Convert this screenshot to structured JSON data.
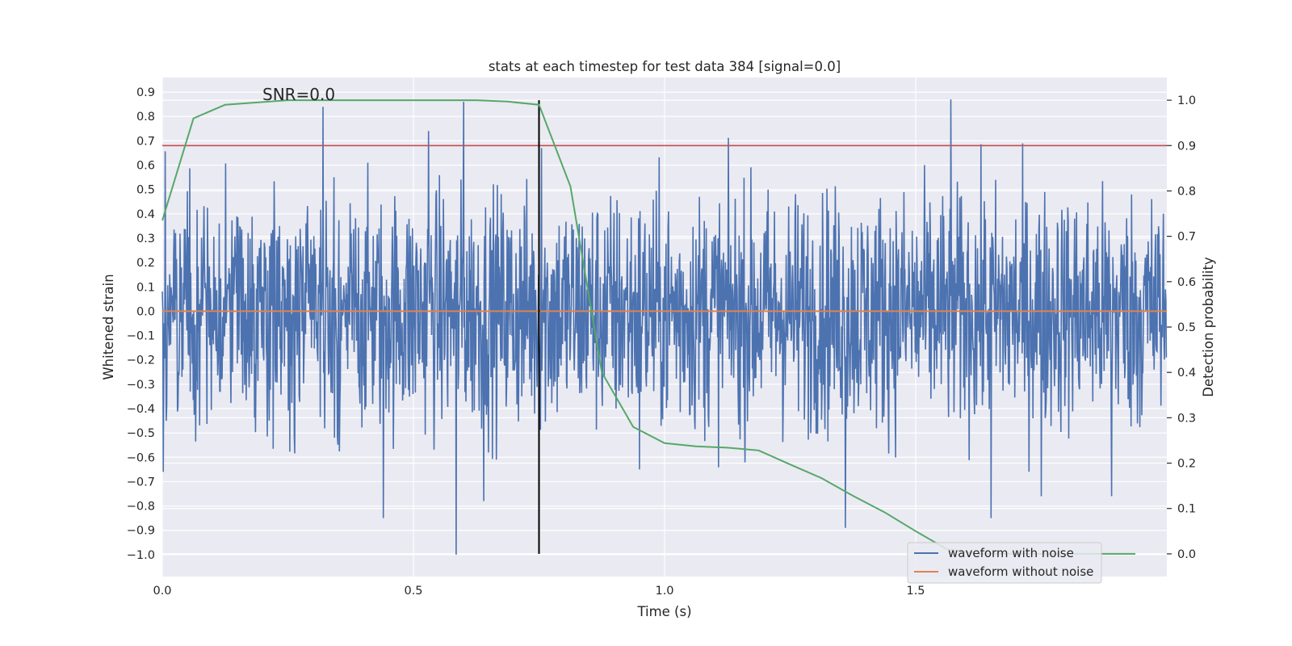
{
  "chart_data": {
    "type": "line",
    "title": "stats at each timestep for test data 384 [signal=0.0]",
    "xlabel": "Time (s)",
    "ylabel": "Whitened strain",
    "ylabel_right": "Detection probability",
    "annotation": "SNR=0.0",
    "xlim": [
      0.0,
      2.0
    ],
    "ylim": [
      -1.09,
      0.96
    ],
    "ylim_right": [
      -0.05,
      1.05
    ],
    "grid": true,
    "legend_placement": "lower right",
    "x_ticks": [
      0.0,
      0.5,
      1.0,
      1.5
    ],
    "x_tick_labels": [
      "0.0",
      "0.5",
      "1.0",
      "1.5"
    ],
    "y_ticks": [
      0.9,
      0.8,
      0.7,
      0.6,
      0.5,
      0.4,
      0.3,
      0.2,
      0.1,
      0.0,
      -0.1,
      -0.2,
      -0.3,
      -0.4,
      -0.5,
      -0.6,
      -0.7,
      -0.8,
      -0.9,
      -1.0
    ],
    "y_tick_labels": [
      "0.9",
      "0.8",
      "0.7",
      "0.6",
      "0.5",
      "0.4",
      "0.3",
      "0.2",
      "0.1",
      "0.0",
      "−0.1",
      "−0.2",
      "−0.3",
      "−0.4",
      "−0.5",
      "−0.6",
      "−0.7",
      "−0.8",
      "−0.9",
      "−1.0"
    ],
    "y_right_ticks": [
      1.0,
      0.9,
      0.8,
      0.7,
      0.6,
      0.5,
      0.4,
      0.3,
      0.2,
      0.1,
      0.0
    ],
    "y_right_tick_labels": [
      "1.0",
      "0.9",
      "0.8",
      "0.7",
      "0.6",
      "0.5",
      "0.4",
      "0.3",
      "0.2",
      "0.1",
      "0.0"
    ],
    "series": [
      {
        "name": "waveform with noise",
        "color": "#4c72b0",
        "axis": "left",
        "description": "dense noise trace, ~2048 samples over 0-2 s, mostly within -0.5..0.5",
        "peaks": [
          {
            "x": 0.002,
            "y": -0.66
          },
          {
            "x": 0.32,
            "y": 0.84
          },
          {
            "x": 0.44,
            "y": -0.85
          },
          {
            "x": 0.53,
            "y": 0.74
          },
          {
            "x": 0.585,
            "y": -1.0
          },
          {
            "x": 0.6,
            "y": 0.86
          },
          {
            "x": 0.64,
            "y": -0.78
          },
          {
            "x": 0.755,
            "y": 0.67
          },
          {
            "x": 0.95,
            "y": -0.65
          },
          {
            "x": 1.36,
            "y": -0.89
          },
          {
            "x": 1.57,
            "y": 0.87
          },
          {
            "x": 1.65,
            "y": -0.85
          },
          {
            "x": 1.75,
            "y": -0.76
          },
          {
            "x": 1.89,
            "y": -0.76
          }
        ]
      },
      {
        "name": "waveform without noise",
        "color": "#dd8452",
        "axis": "left",
        "x": [
          0.0,
          2.0
        ],
        "y": [
          0.0,
          0.0
        ]
      },
      {
        "color": "#55a868",
        "axis": "right",
        "x": [
          0.0,
          0.062,
          0.125,
          0.25,
          0.375,
          0.5,
          0.625,
          0.6875,
          0.75,
          0.8125,
          0.875,
          0.9375,
          1.0,
          1.0625,
          1.125,
          1.1875,
          1.25,
          1.3125,
          1.375,
          1.4375,
          1.5,
          1.5625,
          1.625,
          1.6875,
          1.75,
          1.8125,
          1.875,
          1.9375
        ],
        "y": [
          0.735,
          0.96,
          0.99,
          1.0,
          1.0,
          1.0,
          1.0,
          0.997,
          0.99,
          0.81,
          0.4,
          0.28,
          0.244,
          0.237,
          0.234,
          0.228,
          0.197,
          0.167,
          0.128,
          0.092,
          0.05,
          0.01,
          0.0,
          0.0,
          0.0,
          0.0,
          0.0,
          0.0
        ]
      }
    ],
    "hlines": [
      {
        "color": "#c44e52",
        "axis": "right",
        "y": 0.9
      }
    ],
    "vlines": [
      {
        "color": "#000000",
        "x": 0.75,
        "ymin_right": 0.0,
        "ymax_right": 1.0
      }
    ]
  }
}
